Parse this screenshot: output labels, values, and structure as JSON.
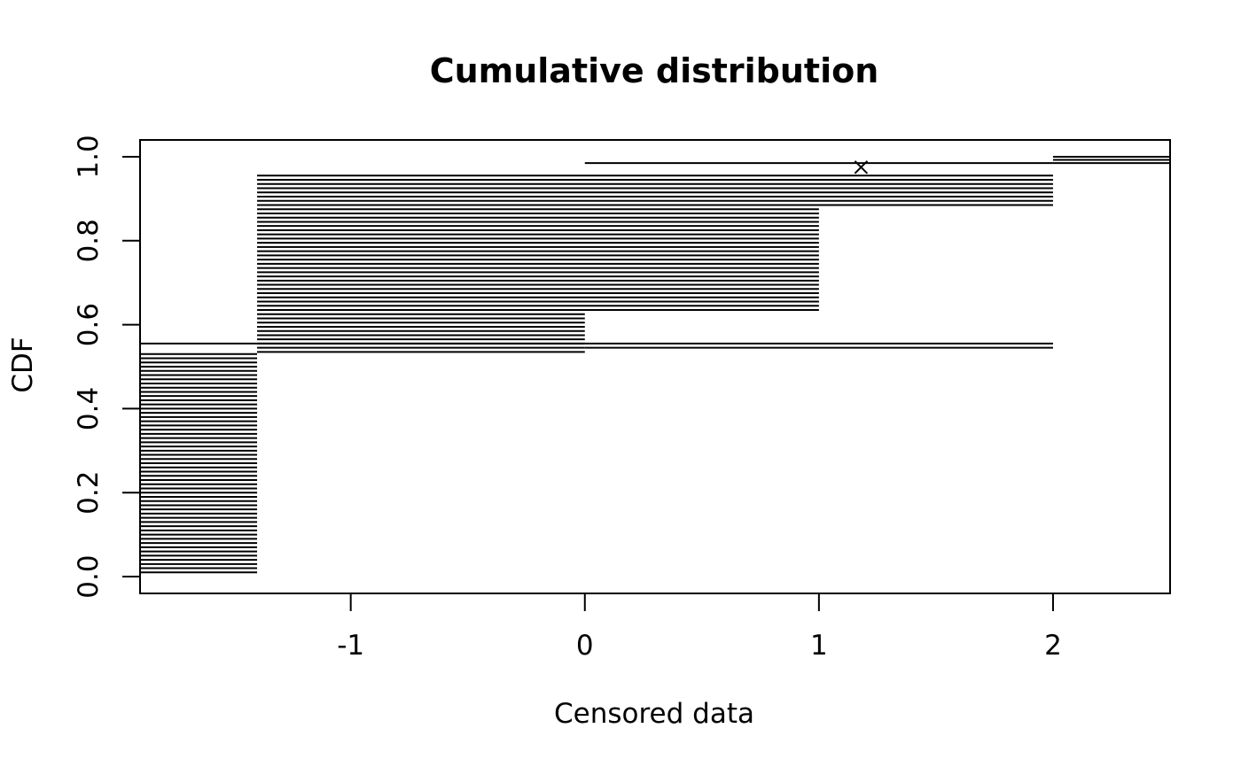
{
  "chart_data": {
    "type": "line",
    "subtype": "censored-data interval CDF plot",
    "title": "Cumulative distribution",
    "xlabel": "Censored data",
    "ylabel": "CDF",
    "xlim": [
      -1.9,
      2.5
    ],
    "ylim": [
      -0.04,
      1.04
    ],
    "x_ticks": [
      -1,
      0,
      1,
      2
    ],
    "x_tick_labels": [
      "-1",
      "0",
      "1",
      "2"
    ],
    "y_ticks": [
      0.0,
      0.2,
      0.4,
      0.6,
      0.8,
      1.0
    ],
    "y_tick_labels": [
      "0.0",
      "0.2",
      "0.4",
      "0.6",
      "0.8",
      "1.0"
    ],
    "grid": false,
    "legend": "none",
    "segment_groups": [
      {
        "x_start": -1.9,
        "x_end": -1.4,
        "y_start": 0.01,
        "y_end": 0.53,
        "count": 53
      },
      {
        "x_start": -1.9,
        "x_end": 0.0,
        "y_start": 0.555,
        "y_end": 0.555,
        "count": 1
      },
      {
        "x_start": -1.4,
        "x_end": 0.0,
        "y_start": 0.535,
        "y_end": 0.625,
        "count": 10
      },
      {
        "x_start": -1.4,
        "x_end": 1.0,
        "y_start": 0.635,
        "y_end": 0.875,
        "count": 25
      },
      {
        "x_start": -1.4,
        "x_end": 2.0,
        "y_start": 0.885,
        "y_end": 0.955,
        "count": 8
      },
      {
        "x_start": 0.0,
        "x_end": 2.0,
        "y_start": 0.545,
        "y_end": 0.555,
        "count": 2
      },
      {
        "x_start": 0.0,
        "x_end": 2.0,
        "y_start": 0.985,
        "y_end": 0.985,
        "count": 1
      },
      {
        "x_start": 2.0,
        "x_end": 2.5,
        "y_start": 0.985,
        "y_end": 1.0,
        "count": 3
      }
    ],
    "points": [
      {
        "x": 1.18,
        "y": 0.975,
        "marker": "x"
      }
    ]
  }
}
